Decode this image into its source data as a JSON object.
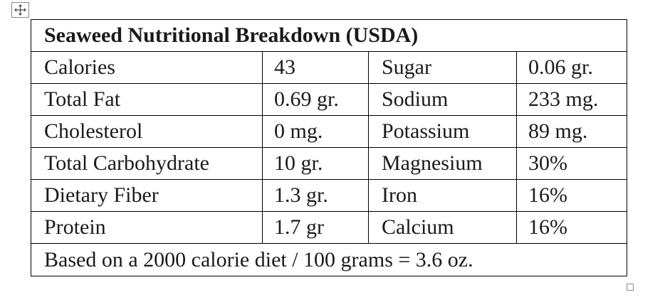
{
  "table": {
    "title": "Seaweed Nutritional Breakdown (USDA)",
    "rows": [
      [
        "Calories",
        "43",
        "Sugar",
        "0.06 gr."
      ],
      [
        "Total Fat",
        "0.69 gr.",
        "Sodium",
        "233 mg."
      ],
      [
        "Cholesterol",
        "0 mg.",
        "Potassium",
        "89 mg."
      ],
      [
        "Total Carbohydrate",
        "10 gr.",
        "Magnesium",
        "30%"
      ],
      [
        "Dietary Fiber",
        "1.3 gr.",
        "Iron",
        "16%"
      ],
      [
        "Protein",
        "1.7 gr",
        "Calcium",
        "16%"
      ]
    ],
    "footer": "Based on a 2000 calorie diet / 100 grams = 3.6 oz."
  }
}
